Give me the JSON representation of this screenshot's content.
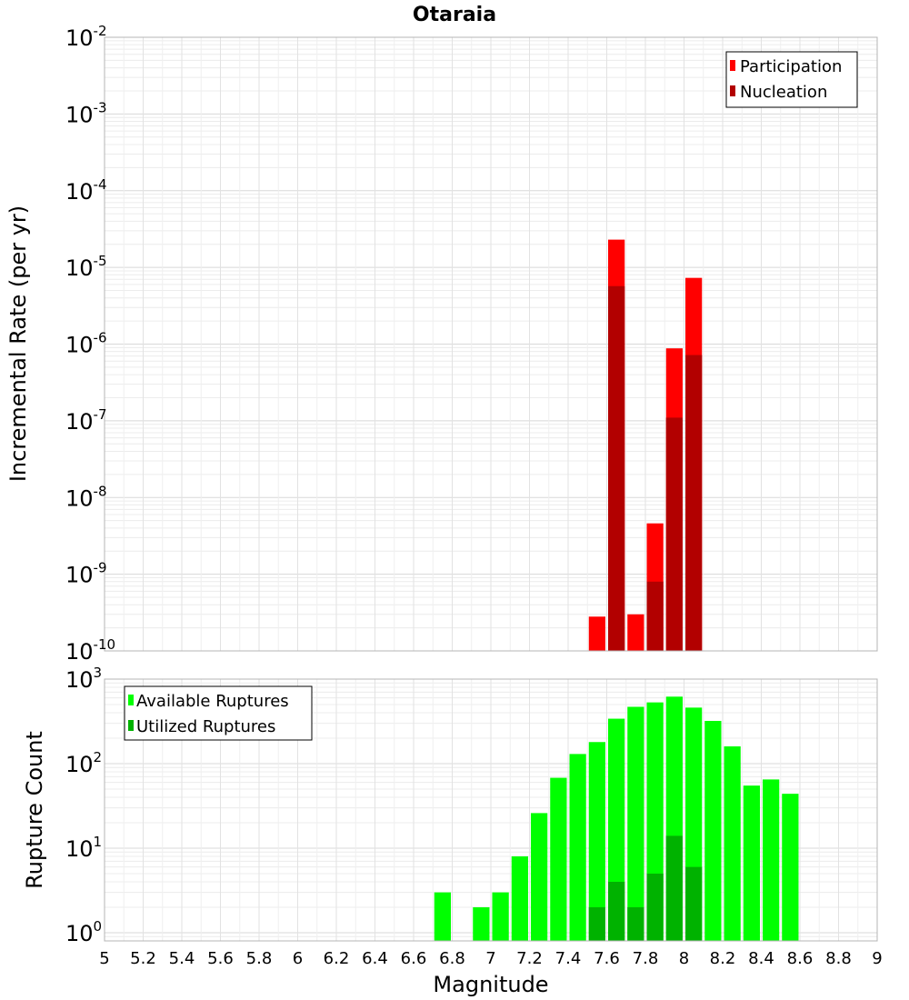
{
  "chart_data": [
    {
      "type": "bar",
      "title": "Otaraia",
      "xlabel": "",
      "ylabel": "Incremental Rate (per yr)",
      "yscale": "log",
      "ylim": [
        1e-10,
        0.01
      ],
      "xlim": [
        5,
        9
      ],
      "ytick_base": "10",
      "ytick_exponents": [
        "-10",
        "-9",
        "-8",
        "-7",
        "-6",
        "-5",
        "-4",
        "-3",
        "-2"
      ],
      "grid": true,
      "legend_position": "top-right",
      "bin_width": 0.1,
      "series": [
        {
          "name": "Participation",
          "color": "#ff0000",
          "x": [
            7.55,
            7.65,
            7.75,
            7.85,
            7.95,
            8.05
          ],
          "values": [
            2.8e-10,
            2.3e-05,
            3e-10,
            4.6e-09,
            8.8e-07,
            7.3e-06
          ]
        },
        {
          "name": "Nucleation",
          "color": "#b20000",
          "x": [
            7.65,
            7.85,
            7.95,
            8.05
          ],
          "values": [
            5.7e-06,
            8e-10,
            1.1e-07,
            7.2e-07
          ]
        }
      ]
    },
    {
      "type": "bar",
      "title": "",
      "xlabel": "Magnitude",
      "ylabel": "Rupture Count",
      "yscale": "log",
      "ylim": [
        0.8,
        1000
      ],
      "xlim": [
        5,
        9
      ],
      "ytick_base": "10",
      "ytick_exponents": [
        "0",
        "1",
        "2",
        "3"
      ],
      "xticks": [
        "5",
        "5.2",
        "5.4",
        "5.6",
        "5.8",
        "6",
        "6.2",
        "6.4",
        "6.6",
        "6.8",
        "7",
        "7.2",
        "7.4",
        "7.6",
        "7.8",
        "8",
        "8.2",
        "8.4",
        "8.6",
        "8.8",
        "9"
      ],
      "grid": true,
      "legend_position": "top-left",
      "bin_width": 0.1,
      "series": [
        {
          "name": "Available Ruptures",
          "color": "#00ff00",
          "x": [
            6.75,
            6.95,
            7.05,
            7.15,
            7.25,
            7.35,
            7.45,
            7.55,
            7.65,
            7.75,
            7.85,
            7.95,
            8.05,
            8.15,
            8.25,
            8.35,
            8.45,
            8.55
          ],
          "values": [
            3,
            2,
            3,
            8,
            26,
            68,
            130,
            180,
            340,
            470,
            530,
            620,
            460,
            320,
            160,
            55,
            65,
            44
          ]
        },
        {
          "name": "Utilized Ruptures",
          "color": "#00b200",
          "x": [
            7.55,
            7.65,
            7.75,
            7.85,
            7.95,
            8.05
          ],
          "values": [
            2,
            4,
            2,
            5,
            14,
            6
          ]
        }
      ]
    }
  ]
}
